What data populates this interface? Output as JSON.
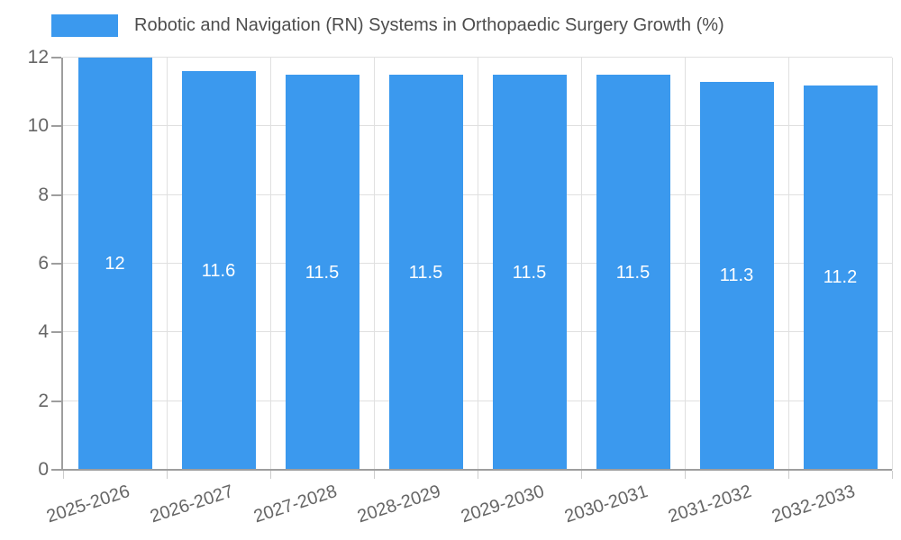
{
  "chart_data": {
    "type": "bar",
    "title": "Robotic and Navigation (RN) Systems in Orthopaedic Surgery Growth (%)",
    "categories": [
      "2025-2026",
      "2026-2027",
      "2027-2028",
      "2028-2029",
      "2029-2030",
      "2030-2031",
      "2031-2032",
      "2032-2033"
    ],
    "values": [
      12,
      11.6,
      11.5,
      11.5,
      11.5,
      11.5,
      11.3,
      11.2
    ],
    "bar_labels": [
      "12",
      "11.6",
      "11.5",
      "11.5",
      "11.5",
      "11.5",
      "11.3",
      "11.2"
    ],
    "xlabel": "",
    "ylabel": "",
    "ylim": [
      0,
      12
    ],
    "yticks": [
      0,
      2,
      4,
      6,
      8,
      10,
      12
    ],
    "grid": true,
    "legend_position": "top-left",
    "colors": {
      "bar": "#3b99ee",
      "value_label": "#ffffff",
      "grid": "#e0e0e0",
      "axis": "#9e9e9e",
      "tick": "#cccccc",
      "tick_text": "#666666",
      "title_text": "#4d4d4d"
    }
  }
}
